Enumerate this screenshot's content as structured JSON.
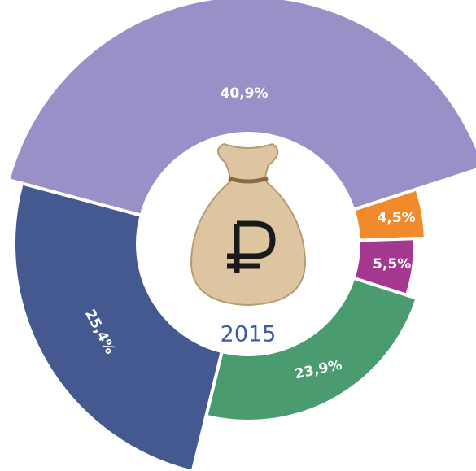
{
  "chart_data": {
    "type": "donut",
    "title": "2015",
    "categories": [
      null,
      null,
      null,
      null,
      null
    ],
    "values": [
      40.9,
      4.5,
      5.5,
      23.9,
      25.4
    ],
    "value_labels": [
      "40,9%",
      "4,5%",
      "5,5%",
      "23,9%",
      "25,4%"
    ],
    "colors": [
      "#9a90c8",
      "#f18a2a",
      "#a4378e",
      "#4a9b70",
      "#43598f"
    ]
  }
}
